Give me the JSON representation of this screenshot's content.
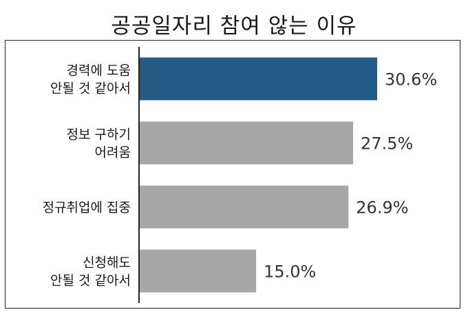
{
  "chart_data": {
    "type": "bar",
    "orientation": "horizontal",
    "title": "공공일자리 참여 않는 이유",
    "categories": [
      [
        "경력에 도움",
        "안될 것 같아서"
      ],
      [
        "정보 구하기",
        "어려움"
      ],
      [
        "정규취업에 집중"
      ],
      [
        "신청해도",
        "안될 것 같아서"
      ]
    ],
    "values": [
      30.6,
      27.5,
      26.9,
      15.0
    ],
    "value_labels": [
      "30.6%",
      "27.5%",
      "26.9%",
      "15.0%"
    ],
    "unit": "%",
    "colors": [
      "#245a86",
      "#a6a6a6",
      "#a6a6a6",
      "#a6a6a6"
    ],
    "xlim": [
      0,
      40
    ],
    "grid": false,
    "legend": "none"
  }
}
